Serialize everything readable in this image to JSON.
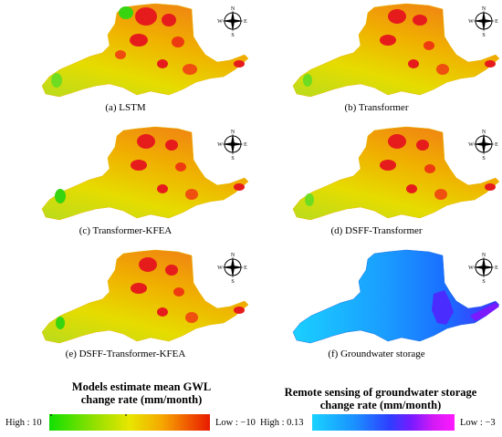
{
  "panels": [
    {
      "caption": "(a)  LSTM"
    },
    {
      "caption": "(b)  Transformer"
    },
    {
      "caption": "(c)  Transformer-KFEA"
    },
    {
      "caption": "(d)  DSFF-Transformer"
    },
    {
      "caption": "(e)  DSFF-Transformer-KFEA"
    },
    {
      "caption": "(f)  Groundwater storage"
    }
  ],
  "compass": {
    "north": "N",
    "south": "S",
    "east": "E",
    "west": "W"
  },
  "legend_gwl": {
    "title_line1": "Models estimate mean GWL",
    "title_line2": "change  rate (mm/month)",
    "high_label": "High : 10",
    "low_label": "Low  : −10",
    "colors": [
      "#10e000",
      "#9be000",
      "#e8e600",
      "#f6a800",
      "#f06000",
      "#e81a00"
    ]
  },
  "legend_storage": {
    "title_line1": "Remote sensing of groundwater storage",
    "title_line2": "change  rate (mm/month)",
    "high_label": "High : 0.13",
    "low_label": "Low  : −3",
    "colors": [
      "#19d3ff",
      "#1a90ff",
      "#2f3cff",
      "#7a1aff",
      "#d21af5",
      "#ff1aff"
    ]
  },
  "colors": {
    "map_high": "#f2b800",
    "map_mid": "#e8d400",
    "map_low": "#c2dc10",
    "hotspot": "#e61c1c",
    "storage_main": "#1c8cff",
    "storage_west": "#1ac8ff",
    "storage_east": "#4a2cff"
  }
}
